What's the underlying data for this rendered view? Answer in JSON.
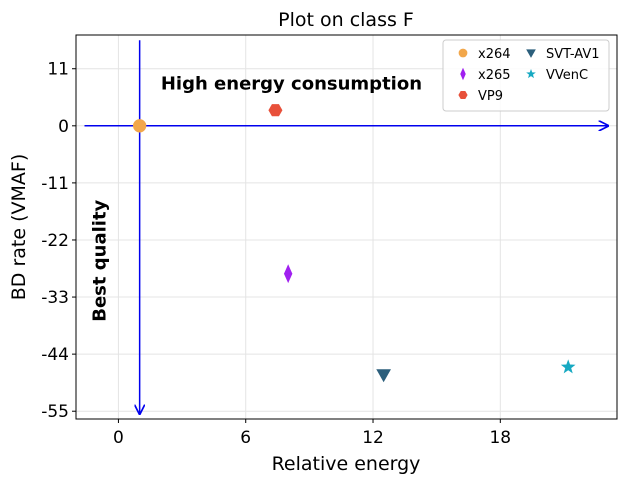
{
  "chart_data": {
    "type": "scatter",
    "title": "Plot on class F",
    "xlabel": "Relative energy",
    "ylabel": "BD rate (VMAF)",
    "xlim": [
      -2,
      23.5
    ],
    "ylim": [
      -56.5,
      17.5
    ],
    "xticks": [
      0,
      6,
      12,
      18
    ],
    "yticks": [
      11,
      0,
      -11,
      -22,
      -33,
      -44,
      -55
    ],
    "xtick_labels": [
      "0",
      "6",
      "12",
      "18"
    ],
    "ytick_labels": [
      "11",
      "0",
      "-11",
      "-22",
      "-33",
      "-44",
      "-55"
    ],
    "grid": true,
    "legend_position": "top-right",
    "series": [
      {
        "name": "x264",
        "marker": "circle",
        "color": "#f2a74b",
        "x": [
          1.0
        ],
        "y": [
          0.0
        ]
      },
      {
        "name": "x265",
        "marker": "thin_diamond",
        "color": "#a020f0",
        "x": [
          8.0
        ],
        "y": [
          -28.5
        ]
      },
      {
        "name": "VP9",
        "marker": "hexagon",
        "color": "#e8503a",
        "x": [
          7.4
        ],
        "y": [
          3.0
        ]
      },
      {
        "name": "SVT-AV1",
        "marker": "triangle_down",
        "color": "#2c5f7c",
        "x": [
          12.5
        ],
        "y": [
          -48.0
        ]
      },
      {
        "name": "VVenC",
        "marker": "star",
        "color": "#17a9c2",
        "x": [
          21.2
        ],
        "y": [
          -46.5
        ]
      }
    ],
    "reference_lines": {
      "color": "#0000ee",
      "horizontal": {
        "y": 0,
        "x_from": -1.6,
        "x_to": 23.5
      },
      "vertical": {
        "x": 1.0,
        "y_from": 16.5,
        "y_to": -55.5
      }
    },
    "annotations": [
      {
        "text": "High energy consumption",
        "x": 2.0,
        "y": 7.0,
        "rotation": 0
      },
      {
        "text": "Best quality",
        "x": -0.6,
        "y": -26.0,
        "rotation": -90
      }
    ]
  }
}
